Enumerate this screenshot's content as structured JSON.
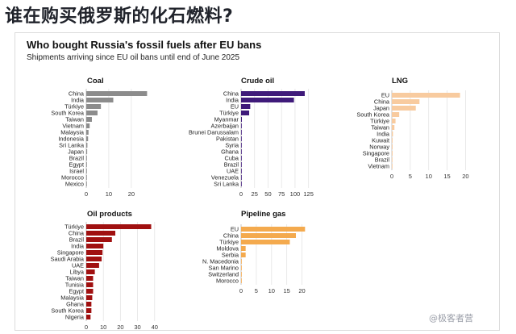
{
  "headline": "谁在购买俄罗斯的化石燃料?",
  "title": "Who bought Russia's fossil fuels after EU bans",
  "subtitle": "Shipments arriving since EU oil bans until end of June 2025",
  "watermark": "@极客者营",
  "chart_data": [
    {
      "type": "bar",
      "title": "Coal",
      "color": "#8c8c8c",
      "categories": [
        "China",
        "India",
        "Türkiye",
        "South Korea",
        "Taiwan",
        "Vietnam",
        "Malaysia",
        "Indonesia",
        "Sri Lanka",
        "Japan",
        "Brazil",
        "Egypt",
        "Israel",
        "Morocco",
        "Mexico"
      ],
      "values": [
        27,
        12,
        6.5,
        5,
        2.5,
        1.5,
        1,
        0.8,
        0.5,
        0.4,
        0.3,
        0.3,
        0.2,
        0.2,
        0.2
      ],
      "xlim": [
        0,
        29
      ],
      "xticks": [
        0,
        10,
        20
      ]
    },
    {
      "type": "bar",
      "title": "Crude oil",
      "color": "#3f1a7a",
      "categories": [
        "China",
        "India",
        "EU",
        "Türkiye",
        "Myanmar",
        "Azerbaijan",
        "Brunei Darussalam",
        "Pakistan",
        "Syria",
        "Ghana",
        "Cuba",
        "Brazil",
        "UAE",
        "Venezuela",
        "Sri Lanka"
      ],
      "values": [
        118,
        98,
        17,
        15,
        1.5,
        0.5,
        0.5,
        0.4,
        0.4,
        0.3,
        0.3,
        0.3,
        0.3,
        0.2,
        0.2
      ],
      "xlim": [
        0,
        127
      ],
      "xticks": [
        0,
        25,
        50,
        75,
        100,
        125
      ]
    },
    {
      "type": "bar",
      "title": "LNG",
      "color": "#f8cb9f",
      "categories": [
        "EU",
        "China",
        "Japan",
        "South Korea",
        "Türkiye",
        "Taiwan",
        "India",
        "Kuwait",
        "Norway",
        "Singapore",
        "Brazil",
        "Vietnam"
      ],
      "values": [
        18.5,
        7.5,
        6.5,
        2,
        1,
        0.7,
        0.3,
        0.2,
        0.2,
        0.2,
        0.1,
        0.1
      ],
      "xlim": [
        0,
        21
      ],
      "xticks": [
        0,
        5,
        10,
        15,
        20
      ]
    },
    {
      "type": "bar",
      "title": "Oil products",
      "color": "#a01010",
      "categories": [
        "Türkiye",
        "China",
        "Brazil",
        "India",
        "Singapore",
        "Saudi Arabia",
        "UAE",
        "Libya",
        "Taiwan",
        "Tunisia",
        "Egypt",
        "Malaysia",
        "Ghana",
        "South Korea",
        "Nigeria"
      ],
      "values": [
        38,
        17,
        15,
        10,
        9.5,
        9,
        7.5,
        5,
        4,
        4,
        4,
        3.5,
        3,
        3,
        2.5
      ],
      "xlim": [
        0,
        42
      ],
      "xticks": [
        0,
        10,
        20,
        30,
        40
      ]
    },
    {
      "type": "bar",
      "title": "Pipeline gas",
      "color": "#f4aa4e",
      "categories": [
        "EU",
        "China",
        "Türkiye",
        "Moldova",
        "Serbia",
        "N. Macedonia",
        "San Marino",
        "Switzerland",
        "Morocco"
      ],
      "values": [
        21,
        18,
        16,
        1.5,
        1.5,
        0.2,
        0.1,
        0.1,
        0.1
      ],
      "xlim": [
        0,
        22.5
      ],
      "xticks": [
        0,
        5,
        10,
        15,
        20
      ]
    }
  ]
}
